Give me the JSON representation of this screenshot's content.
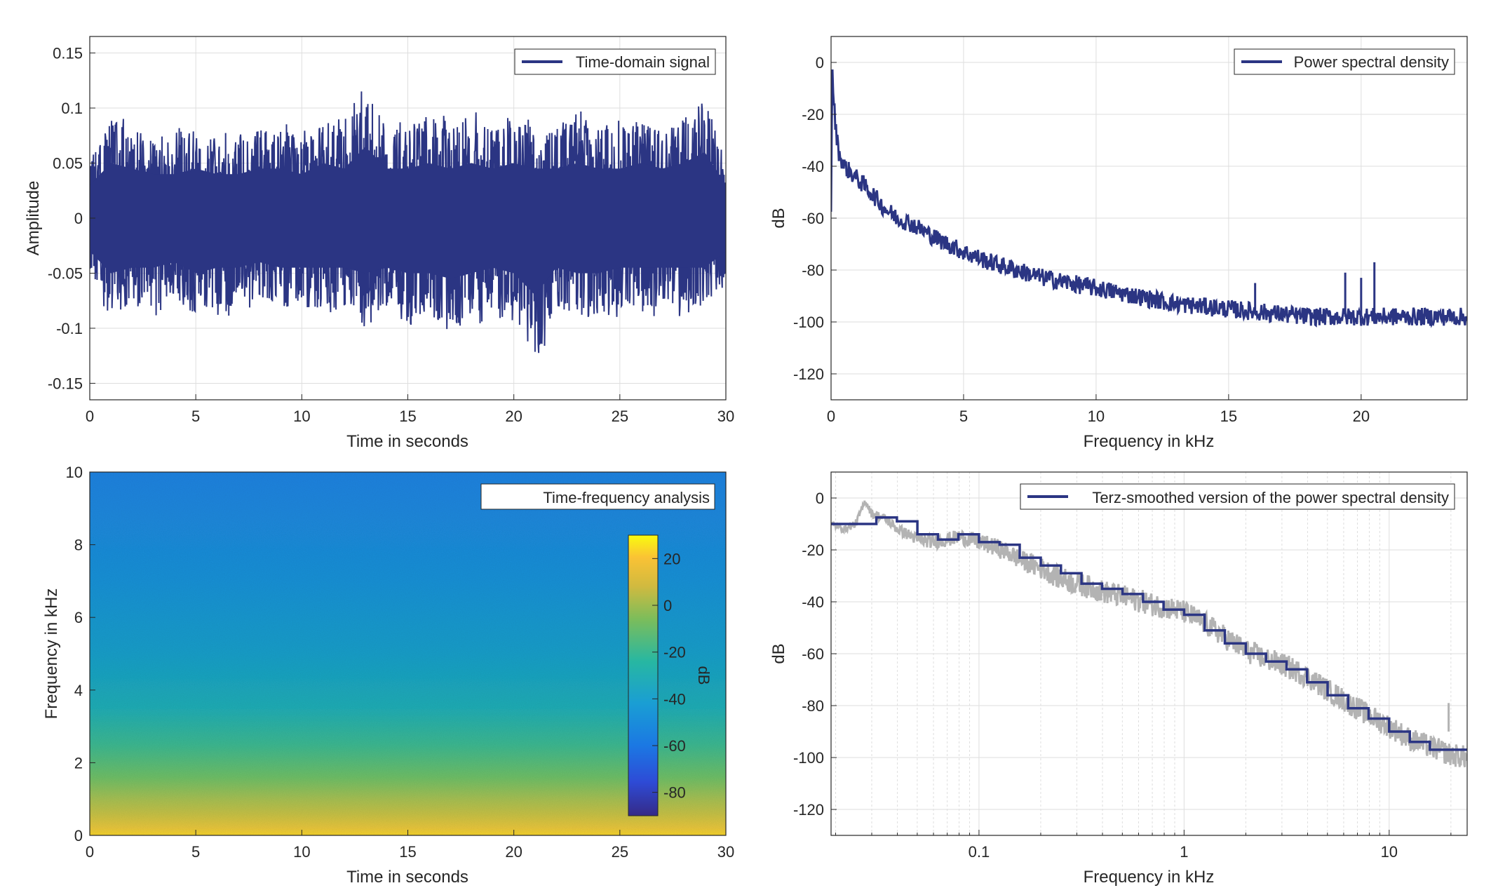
{
  "chart_data": [
    {
      "id": "time_signal",
      "type": "line",
      "title": "",
      "xlabel": "Time in seconds",
      "ylabel": "Amplitude",
      "xlim": [
        0,
        30
      ],
      "ylim": [
        -0.165,
        0.165
      ],
      "xticks": [
        0,
        5,
        10,
        15,
        20,
        25,
        30
      ],
      "yticks": [
        -0.15,
        -0.1,
        -0.05,
        0,
        0.05,
        0.1,
        0.15
      ],
      "grid": true,
      "legend_location": "top-right",
      "series": [
        {
          "name": "Time-domain signal",
          "color": "#2b3583",
          "envelope_x": [
            0,
            1,
            2,
            3,
            4,
            5,
            6,
            7,
            8,
            9,
            10,
            11,
            12,
            13,
            14,
            15,
            16,
            17,
            18,
            19,
            20,
            21,
            22,
            23,
            24,
            25,
            26,
            27,
            28,
            29,
            30
          ],
          "envelope_max": [
            0.06,
            0.1,
            0.09,
            0.08,
            0.08,
            0.09,
            0.08,
            0.08,
            0.09,
            0.09,
            0.08,
            0.1,
            0.09,
            0.13,
            0.09,
            0.09,
            0.1,
            0.09,
            0.1,
            0.09,
            0.1,
            0.09,
            0.09,
            0.1,
            0.09,
            0.09,
            0.1,
            0.09,
            0.1,
            0.12,
            0.06
          ],
          "envelope_min": [
            -0.06,
            -0.1,
            -0.09,
            -0.09,
            -0.08,
            -0.1,
            -0.09,
            -0.09,
            -0.08,
            -0.09,
            -0.09,
            -0.09,
            -0.09,
            -0.1,
            -0.09,
            -0.1,
            -0.1,
            -0.11,
            -0.1,
            -0.09,
            -0.1,
            -0.14,
            -0.09,
            -0.1,
            -0.1,
            -0.09,
            -0.09,
            -0.09,
            -0.09,
            -0.09,
            -0.06
          ]
        }
      ]
    },
    {
      "id": "psd",
      "type": "line",
      "title": "",
      "xlabel": "Frequency in kHz",
      "ylabel": "dB",
      "xlim": [
        0,
        24
      ],
      "ylim": [
        -130,
        10
      ],
      "xticks": [
        0,
        5,
        10,
        15,
        20
      ],
      "yticks": [
        -120,
        -100,
        -80,
        -60,
        -40,
        -20,
        0
      ],
      "grid": true,
      "legend_location": "top-right",
      "series": [
        {
          "name": "Power spectral density",
          "color": "#2b3583",
          "x": [
            0,
            0.05,
            0.1,
            0.2,
            0.3,
            0.5,
            1,
            1.5,
            2,
            2.5,
            3,
            3.5,
            4,
            5,
            6,
            7,
            8,
            9,
            10,
            11,
            12,
            13,
            14,
            15,
            16,
            17,
            18,
            19,
            20,
            21,
            22,
            23,
            24
          ],
          "y": [
            -55,
            -2,
            -15,
            -28,
            -35,
            -40,
            -45,
            -50,
            -56,
            -60,
            -62,
            -65,
            -68,
            -73,
            -77,
            -80,
            -83,
            -85,
            -87,
            -89,
            -91,
            -93,
            -94,
            -95,
            -96,
            -97,
            -98,
            -98,
            -98,
            -98,
            -98,
            -98,
            -98
          ],
          "spikes": [
            {
              "x": 16.0,
              "y": -85
            },
            {
              "x": 19.4,
              "y": -81
            },
            {
              "x": 20.0,
              "y": -83
            },
            {
              "x": 20.5,
              "y": -77
            }
          ]
        }
      ]
    },
    {
      "id": "spectrogram",
      "type": "heatmap",
      "title": "",
      "xlabel": "Time in seconds",
      "ylabel": "Frequency in kHz",
      "xlim": [
        0,
        30
      ],
      "ylim": [
        0,
        10
      ],
      "xticks": [
        0,
        5,
        10,
        15,
        20,
        25,
        30
      ],
      "yticks": [
        0,
        2,
        4,
        6,
        8,
        10
      ],
      "legend_location": "top-right",
      "legend": "Time-frequency analysis",
      "colormap": "parula",
      "colorbar": {
        "label": "dB",
        "range": [
          -90,
          30
        ],
        "ticks": [
          -80,
          -60,
          -40,
          -20,
          0,
          20
        ]
      },
      "freq_profile_khz": [
        0,
        0.5,
        1,
        2,
        3,
        4,
        5,
        6,
        7,
        8,
        9,
        10
      ],
      "freq_profile_db": [
        15,
        5,
        -3,
        -12,
        -22,
        -28,
        -33,
        -37,
        -40,
        -43,
        -46,
        -48
      ]
    },
    {
      "id": "terz_smoothed",
      "type": "line",
      "title": "",
      "xlabel": "Frequency in kHz",
      "ylabel": "dB",
      "xscale": "log",
      "xlim": [
        0.019,
        24
      ],
      "ylim": [
        -130,
        10
      ],
      "xticks": [
        0.1,
        1,
        10
      ],
      "yticks": [
        -120,
        -100,
        -80,
        -60,
        -40,
        -20,
        0
      ],
      "grid": true,
      "legend_location": "top-right",
      "series": [
        {
          "name": "Terz-smoothed version of the power spectral density",
          "color": "#2b3583",
          "step_edges_khz": [
            0.019,
            0.025,
            0.0316,
            0.0398,
            0.0501,
            0.0631,
            0.0794,
            0.1,
            0.126,
            0.158,
            0.2,
            0.251,
            0.316,
            0.398,
            0.501,
            0.631,
            0.794,
            1.0,
            1.26,
            1.58,
            2.0,
            2.51,
            3.16,
            3.98,
            5.01,
            6.31,
            7.94,
            10.0,
            12.6,
            15.8,
            24.0
          ],
          "step_values_db": [
            -10,
            -10,
            -7.5,
            -9,
            -14,
            -16,
            -14,
            -17,
            -18,
            -23,
            -26,
            -29,
            -33,
            -35,
            -37,
            -40,
            -43,
            -45,
            -51,
            -56,
            -60,
            -63,
            -66,
            -71,
            -76,
            -81,
            -85,
            -90,
            -94,
            -97
          ]
        },
        {
          "name": "",
          "color": "#b3b3b3",
          "x": [
            0.019,
            0.022,
            0.025,
            0.028,
            0.03,
            0.035,
            0.04,
            0.05,
            0.06,
            0.07,
            0.08,
            0.1,
            0.13,
            0.16,
            0.2,
            0.25,
            0.3,
            0.4,
            0.5,
            0.7,
            1.0,
            1.3,
            1.6,
            2.0,
            2.5,
            3.2,
            4.0,
            5.0,
            6.3,
            8.0,
            10.0,
            12.6,
            16.0,
            20.0,
            24.0
          ],
          "y": [
            -10,
            -12,
            -10,
            -1,
            -6,
            -8,
            -12,
            -16,
            -17,
            -16,
            -15,
            -17,
            -20,
            -24,
            -27,
            -31,
            -33,
            -36,
            -38,
            -41,
            -44,
            -49,
            -54,
            -59,
            -62,
            -65,
            -69,
            -74,
            -79,
            -84,
            -88,
            -93,
            -96,
            -99,
            -100
          ]
        }
      ]
    }
  ]
}
